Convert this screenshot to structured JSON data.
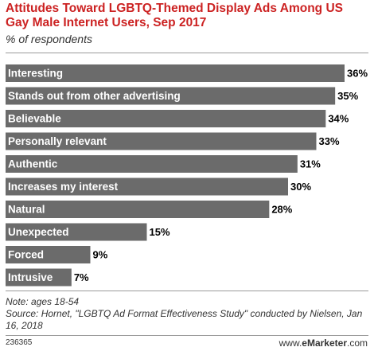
{
  "title": "Attitudes Toward LGBTQ-Themed Display Ads Among US Gay Male Internet Users, Sep 2017",
  "subtitle": "% of respondents",
  "note_line1": "Note: ages 18-54",
  "note_line2": "Source: Hornet, \"LGBTQ Ad Format Effectiveness Study\" conducted by Nielsen, Jan 16, 2018",
  "chart_id": "236365",
  "brand_prefix": "www.",
  "brand_name": "eMarketer",
  "brand_suffix": ".com",
  "colors": {
    "bar": "#6b6b6b",
    "title": "#cc2222",
    "label": "#ffffff",
    "value": "#000000"
  },
  "chart_data": {
    "type": "bar",
    "orientation": "horizontal",
    "categories": [
      "Interesting",
      "Stands out from other advertising",
      "Believable",
      "Personally relevant",
      "Authentic",
      "Increases my interest",
      "Natural",
      "Unexpected",
      "Forced",
      "Intrusive"
    ],
    "values": [
      36,
      35,
      34,
      33,
      31,
      30,
      28,
      15,
      9,
      7
    ],
    "value_labels": [
      "36%",
      "35%",
      "34%",
      "33%",
      "31%",
      "30%",
      "28%",
      "15%",
      "9%",
      "7%"
    ],
    "xlim": [
      0,
      36
    ],
    "grid": false
  }
}
